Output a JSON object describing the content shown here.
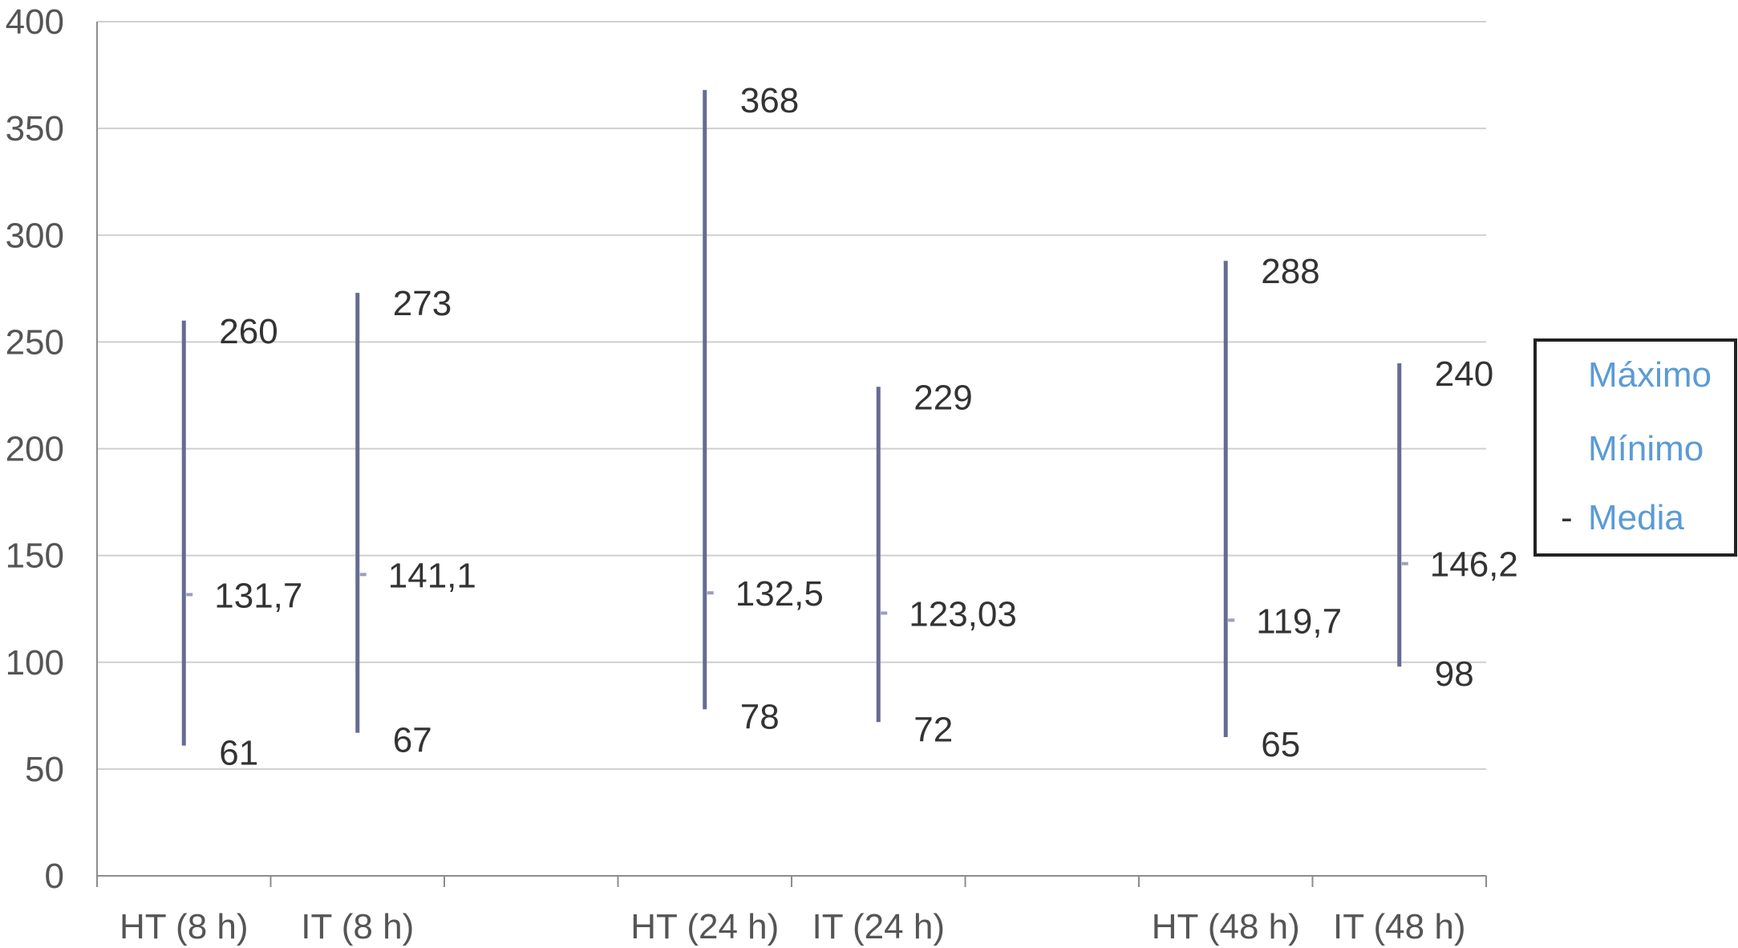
{
  "chart_data": {
    "type": "high-low-mean",
    "categories": [
      "HT (8 h)",
      "IT  (8 h)",
      "HT (24 h)",
      "IT (24 h)",
      "HT  (48 h)",
      "IT  (48 h)"
    ],
    "series": [
      {
        "name": "Máximo",
        "values": [
          260,
          273,
          368,
          229,
          288,
          240
        ],
        "labels": [
          "260",
          "273",
          "368",
          "229",
          "288",
          "240"
        ]
      },
      {
        "name": "Mínimo",
        "values": [
          61,
          67,
          78,
          72,
          65,
          98
        ],
        "labels": [
          "61",
          "67",
          "78",
          "72",
          "65",
          "98"
        ]
      },
      {
        "name": "Media",
        "values": [
          131.7,
          141.1,
          132.5,
          123.03,
          119.7,
          146.2
        ],
        "labels": [
          "131,7",
          "141,1",
          "132,5",
          "123,03",
          "119,7",
          "146,2"
        ]
      }
    ],
    "ylim": [
      0,
      400
    ],
    "yticks": [
      0,
      50,
      100,
      150,
      200,
      250,
      300,
      350,
      400
    ],
    "category_slots": [
      0.5,
      1.5,
      3.5,
      4.5,
      6.5,
      7.5
    ],
    "slot_count": 8,
    "grid": true,
    "legend": {
      "position": "right",
      "dash": "-"
    },
    "colors": {
      "bar": "#666b94",
      "mean_marker": "#9aa0b8",
      "grid": "#cfcfcf",
      "axis": "#8c8c8c",
      "legend_text": "#5b9bd5"
    }
  }
}
